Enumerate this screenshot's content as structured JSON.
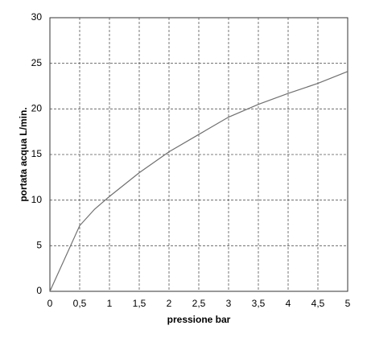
{
  "chart_data": {
    "type": "line",
    "x_label": "pressione  bar",
    "y_label": "portata acqua  L/min.",
    "x": [
      0,
      0.5,
      0.75,
      1,
      1.5,
      2,
      2.5,
      3,
      3.5,
      4,
      4.5,
      5
    ],
    "series": [
      {
        "color": "#707070",
        "values": [
          0,
          7.2,
          9.0,
          10.4,
          13.0,
          15.3,
          17.2,
          19.1,
          20.5,
          21.7,
          22.8,
          24.1
        ]
      }
    ],
    "xlim": [
      0,
      5
    ],
    "xticks": [
      0,
      {
        "value": 0.5,
        "label": "0,5"
      },
      1,
      {
        "value": 1.5,
        "label": "1,5"
      },
      2,
      {
        "value": 2.5,
        "label": "2,5"
      },
      3,
      {
        "value": 3.5,
        "label": "3,5"
      },
      4,
      {
        "value": 4.5,
        "label": "4,5"
      },
      5
    ],
    "ylim": [
      0,
      30
    ],
    "yticks": [
      0,
      5,
      10,
      15,
      20,
      25,
      30
    ],
    "grid": true
  }
}
